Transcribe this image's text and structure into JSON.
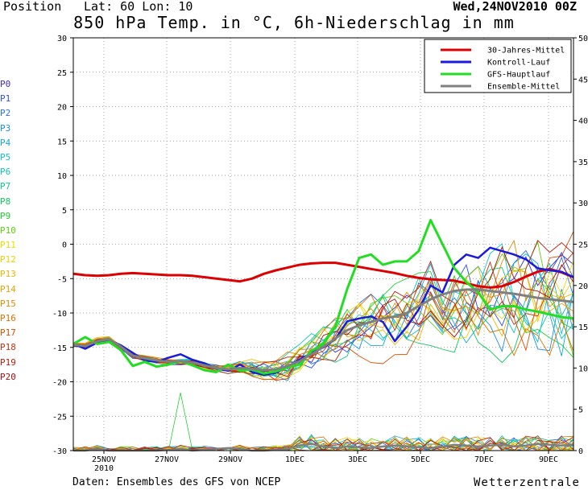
{
  "header": {
    "position_label": "Position",
    "latlon_label": "Lat: 60 Lon: 10",
    "run_date": "Wed,24NOV2010 00Z"
  },
  "footer": {
    "source": "Daten: Ensembles des GFS von NCEP",
    "brand": "Wetterzentrale"
  },
  "colors": {
    "climate": "#dd0000",
    "control": "#1a1adc",
    "gfs_main": "#22dd22",
    "ensemble_mean": "#808080"
  },
  "members": [
    {
      "label": "P0",
      "color": "#3a2ad8"
    },
    {
      "label": "P1",
      "color": "#3050e0"
    },
    {
      "label": "P2",
      "color": "#2a6fe8"
    },
    {
      "label": "P3",
      "color": "#1a90e8"
    },
    {
      "label": "P4",
      "color": "#10a8e0"
    },
    {
      "label": "P5",
      "color": "#10c0d8"
    },
    {
      "label": "P6",
      "color": "#10c8b0"
    },
    {
      "label": "P7",
      "color": "#10c890"
    },
    {
      "label": "P8",
      "color": "#10c860"
    },
    {
      "label": "P9",
      "color": "#20d030"
    },
    {
      "label": "P10",
      "color": "#60d010"
    },
    {
      "label": "P11",
      "color": "#e8e000"
    },
    {
      "label": "P12",
      "color": "#f0d000"
    },
    {
      "label": "P13",
      "color": "#f0b800"
    },
    {
      "label": "P14",
      "color": "#f0a000"
    },
    {
      "label": "P15",
      "color": "#e88800"
    },
    {
      "label": "P16",
      "color": "#e07000"
    },
    {
      "label": "P17",
      "color": "#d85000"
    },
    {
      "label": "P18",
      "color": "#c83010"
    },
    {
      "label": "P19",
      "color": "#b82010"
    },
    {
      "label": "P20",
      "color": "#a81010"
    }
  ],
  "chart_data": {
    "type": "line",
    "title": "850 hPa Temp. in °C, 6h-Niederschlag in mm",
    "x_ticks": [
      "25NOV\n2010",
      "27NOV",
      "29NOV",
      "1DEC",
      "3DEC",
      "5DEC",
      "7DEC",
      "9DEC"
    ],
    "x_range_days": [
      24.0,
      9.75
    ],
    "y_left": {
      "label": "",
      "range": [
        -30,
        30
      ],
      "ticks": [
        -30,
        -25,
        -20,
        -15,
        -10,
        -5,
        0,
        5,
        10,
        15,
        20,
        25,
        30
      ]
    },
    "y_right": {
      "label": "",
      "range": [
        0,
        50
      ],
      "ticks": [
        0,
        5,
        10,
        15,
        20,
        25,
        30,
        35,
        40,
        45,
        50
      ]
    },
    "grid": true,
    "legend_position": "top-right",
    "series": [
      {
        "name": "30-Jahres-Mittel",
        "key": "climate",
        "axis": "left",
        "values": [
          -4.3,
          -4.5,
          -4.6,
          -4.5,
          -4.3,
          -4.2,
          -4.3,
          -4.4,
          -4.5,
          -4.5,
          -4.6,
          -4.8,
          -5.0,
          -5.2,
          -5.4,
          -5.0,
          -4.3,
          -3.8,
          -3.4,
          -3.0,
          -2.8,
          -2.7,
          -2.7,
          -3.0,
          -3.3,
          -3.6,
          -3.9,
          -4.2,
          -4.6,
          -4.9,
          -5.1,
          -5.2,
          -5.3,
          -5.7,
          -6.1,
          -6.3,
          -6.1,
          -5.5,
          -4.7,
          -4.0,
          -3.6,
          -4.1,
          -4.8
        ]
      },
      {
        "name": "Kontroll-Lauf",
        "key": "control",
        "axis": "left",
        "values": [
          -14.5,
          -15.2,
          -14.3,
          -13.9,
          -14.7,
          -15.8,
          -16.9,
          -17.1,
          -16.5,
          -16.0,
          -16.8,
          -17.3,
          -18.1,
          -18.4,
          -17.5,
          -18.6,
          -19.0,
          -18.7,
          -17.8,
          -16.8,
          -15.8,
          -15.0,
          -13.8,
          -11.2,
          -10.8,
          -10.5,
          -11.3,
          -14.1,
          -12.0,
          -9.5,
          -6.0,
          -7.0,
          -3.0,
          -1.5,
          -2.0,
          -0.5,
          -1.0,
          -1.5,
          -2.2,
          -3.5,
          -3.8,
          -4.0,
          -4.8
        ]
      },
      {
        "name": "GFS-Hauptlauf",
        "key": "gfs_main",
        "axis": "left",
        "values": [
          -14.5,
          -13.5,
          -14.5,
          -14.2,
          -15.4,
          -17.7,
          -17.1,
          -17.8,
          -17.5,
          -17.0,
          -17.6,
          -18.3,
          -18.6,
          -17.5,
          -18.4,
          -18.2,
          -18.8,
          -18.5,
          -17.9,
          -17.5,
          -15.5,
          -14.5,
          -12.0,
          -6.5,
          -2.0,
          -1.5,
          -3.0,
          -2.5,
          -2.5,
          -1.0,
          3.5,
          0.0,
          -3.5,
          -5.5,
          -7.0,
          -9.5,
          -9.0,
          -9.0,
          -9.5,
          -9.8,
          -10.2,
          -10.6,
          -10.8
        ]
      },
      {
        "name": "Ensemble-Mittel",
        "key": "ensemble_mean",
        "axis": "left",
        "values": [
          -14.6,
          -14.8,
          -14.1,
          -13.8,
          -14.9,
          -16.2,
          -16.6,
          -16.9,
          -17.1,
          -17.0,
          -17.2,
          -17.6,
          -18.0,
          -18.2,
          -18.0,
          -18.1,
          -18.3,
          -18.2,
          -17.7,
          -17.0,
          -16.0,
          -14.9,
          -13.7,
          -12.5,
          -11.8,
          -11.3,
          -10.8,
          -10.5,
          -10.0,
          -9.0,
          -8.0,
          -7.3,
          -6.8,
          -6.6,
          -6.6,
          -6.8,
          -7.0,
          -7.2,
          -7.5,
          -7.8,
          -8.0,
          -8.2,
          -8.4
        ]
      }
    ],
    "precip_mean": [
      0,
      0,
      0.2,
      0,
      0,
      0,
      0,
      0,
      0.1,
      0.2,
      0,
      0.1,
      0.2,
      0.3,
      0.2,
      0,
      0,
      0.1,
      0.2,
      0.6,
      0.8,
      0.5,
      0.3,
      0.5,
      0.4,
      0.3,
      0.5,
      0.6,
      0.5,
      0.4,
      0.3,
      0.5,
      0.7,
      0.6,
      0.5,
      0.6,
      0.7,
      0.5,
      0.6,
      0.8,
      0.7,
      0.6,
      0.7
    ]
  }
}
